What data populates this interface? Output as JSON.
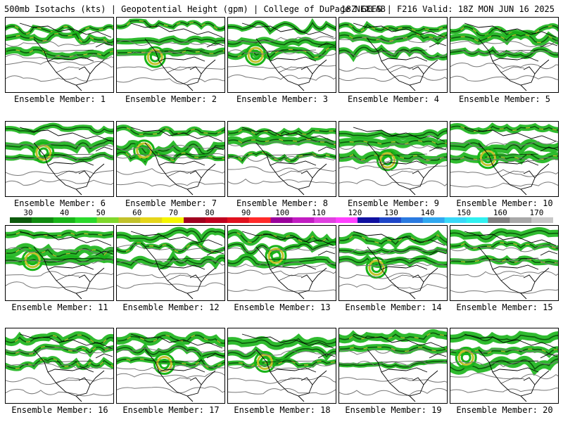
{
  "header": {
    "left": "500mb Isotachs (kts) | Geopotential Height (gpm) | College of DuPage NEXLAB",
    "right": "18Z GEFS | F216 Valid: 18Z MON JUN 16 2025"
  },
  "panels": [
    {
      "label": "Ensemble Member: 1"
    },
    {
      "label": "Ensemble Member: 2"
    },
    {
      "label": "Ensemble Member: 3"
    },
    {
      "label": "Ensemble Member: 4"
    },
    {
      "label": "Ensemble Member: 5"
    },
    {
      "label": "Ensemble Member: 6"
    },
    {
      "label": "Ensemble Member: 7"
    },
    {
      "label": "Ensemble Member: 8"
    },
    {
      "label": "Ensemble Member: 9"
    },
    {
      "label": "Ensemble Member: 10"
    },
    {
      "label": "Ensemble Member: 11"
    },
    {
      "label": "Ensemble Member: 12"
    },
    {
      "label": "Ensemble Member: 13"
    },
    {
      "label": "Ensemble Member: 14"
    },
    {
      "label": "Ensemble Member: 15"
    },
    {
      "label": "Ensemble Member: 16"
    },
    {
      "label": "Ensemble Member: 17"
    },
    {
      "label": "Ensemble Member: 18"
    },
    {
      "label": "Ensemble Member: 19"
    },
    {
      "label": "Ensemble Member: 20"
    }
  ],
  "colorbar": {
    "ticks": [
      "30",
      "40",
      "50",
      "60",
      "70",
      "80",
      "90",
      "100",
      "110",
      "120",
      "130",
      "140",
      "150",
      "160",
      "170"
    ],
    "colors": [
      "#0c5a0c",
      "#0f8a0f",
      "#18b418",
      "#2bd92b",
      "#7fd82b",
      "#c2c22b",
      "#e5d51a",
      "#f5f500",
      "#a0001e",
      "#c0001e",
      "#e0101e",
      "#ff2a2a",
      "#9b009b",
      "#c21cc2",
      "#e040e0",
      "#ff40ff",
      "#1010a0",
      "#1e46c8",
      "#2a7ae0",
      "#30a8f0",
      "#38d8f8",
      "#30f0f0",
      "#808080",
      "#a8a8a8",
      "#c8c8c8"
    ]
  }
}
